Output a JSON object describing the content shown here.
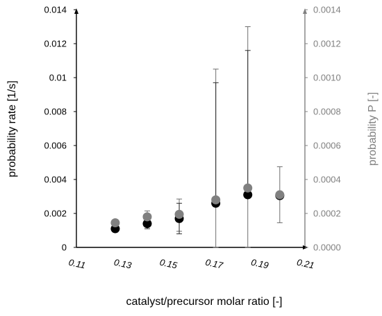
{
  "chart_data": {
    "type": "scatter",
    "title": "",
    "xlabel": "catalyst/precursor molar ratio [-]",
    "ylabel_left": "probability rate [1/s]",
    "ylabel_right": "probability P [-]",
    "xlim": [
      0.11,
      0.21
    ],
    "ylim_left": [
      0,
      0.014
    ],
    "ylim_right": [
      0,
      0.0014
    ],
    "x_ticks": [
      "0.11",
      "0.13",
      "0.15",
      "0.17",
      "0.19",
      "0.21"
    ],
    "y_left_ticks": [
      "0",
      "0.002",
      "0.004",
      "0.006",
      "0.008",
      "0.01",
      "0.012",
      "0.014"
    ],
    "y_right_ticks": [
      "0.0000",
      "0.0002",
      "0.0004",
      "0.0006",
      "0.0008",
      "0.0010",
      "0.0012",
      "0.0014"
    ],
    "grid": false,
    "series": [
      {
        "axis": "left",
        "color": "#000000",
        "points": [
          {
            "x": 0.127,
            "y": 0.0011,
            "err_low": 0.0011,
            "err_high": 0.0011
          },
          {
            "x": 0.141,
            "y": 0.0014,
            "err_low": 0.0011,
            "err_high": 0.0017
          },
          {
            "x": 0.155,
            "y": 0.0017,
            "err_low": 0.0008,
            "err_high": 0.0026
          },
          {
            "x": 0.171,
            "y": 0.0026,
            "err_low": 0.0026,
            "err_high": 0.0097
          },
          {
            "x": 0.185,
            "y": 0.0031,
            "err_low": 0.0031,
            "err_high": 0.0116
          },
          {
            "x": 0.199,
            "y": 0.00305,
            "err_low": 0.00305,
            "err_high": 0.00305
          }
        ]
      },
      {
        "axis": "right",
        "color": "#808080",
        "points": [
          {
            "x": 0.127,
            "y": 0.000145,
            "err_low": 0.000145,
            "err_high": 0.000145
          },
          {
            "x": 0.141,
            "y": 0.00018,
            "err_low": 0.00013,
            "err_high": 0.000215
          },
          {
            "x": 0.155,
            "y": 0.000195,
            "err_low": 9.5e-05,
            "err_high": 0.000285
          },
          {
            "x": 0.171,
            "y": 0.00028,
            "err_low": 0.0,
            "err_high": 0.00105
          },
          {
            "x": 0.185,
            "y": 0.00035,
            "err_low": 0.0,
            "err_high": 0.0013
          },
          {
            "x": 0.199,
            "y": 0.00031,
            "err_low": 0.000145,
            "err_high": 0.000475
          }
        ]
      }
    ],
    "colors": {
      "left_axis": "#000000",
      "right_axis": "#808080"
    }
  }
}
